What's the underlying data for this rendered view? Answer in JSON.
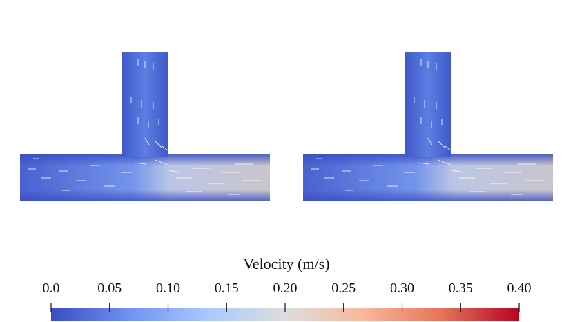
{
  "figure": {
    "panels": [
      {
        "name": "left-tjunction-flow"
      },
      {
        "name": "right-tjunction-flow"
      }
    ]
  },
  "colorbar": {
    "title": "Velocity (m/s)",
    "min": 0.0,
    "max": 0.4,
    "ticks": [
      "0.0",
      "0.05",
      "0.10",
      "0.15",
      "0.20",
      "0.25",
      "0.30",
      "0.35",
      "0.40"
    ],
    "colors": [
      "#3b4cc0",
      "#6f92f3",
      "#aac7fd",
      "#dddddd",
      "#f7b89c",
      "#e7745b",
      "#b40426"
    ]
  }
}
